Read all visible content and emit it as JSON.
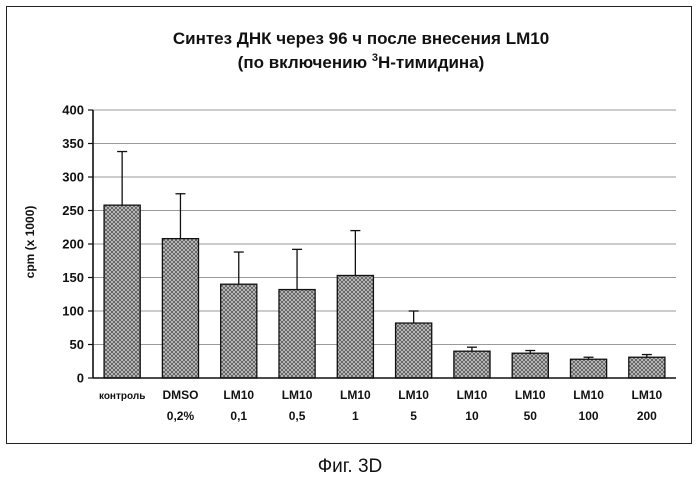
{
  "figure": {
    "caption": "Фиг. 3D"
  },
  "chart_data": {
    "type": "bar",
    "title_line1": "Синтез ДНК через 96 ч после внесения LM10",
    "title_line2_prefix": "(по включению ",
    "title_line2_sup": "3",
    "title_line2_suffix": "H-тимидина)",
    "xlabel": "",
    "ylabel": "cpm (x 1000)",
    "ylim": [
      0,
      400
    ],
    "yticks": [
      0,
      50,
      100,
      150,
      200,
      250,
      300,
      350,
      400
    ],
    "grid": true,
    "categories": [
      [
        "контроль"
      ],
      [
        "DMSO",
        "0,2%"
      ],
      [
        "LM10",
        "0,1"
      ],
      [
        "LM10",
        "0,5"
      ],
      [
        "LM10",
        "1"
      ],
      [
        "LM10",
        "5"
      ],
      [
        "LM10",
        "10"
      ],
      [
        "LM10",
        "50"
      ],
      [
        "LM10",
        "100"
      ],
      [
        "LM10",
        "200"
      ]
    ],
    "values": [
      258,
      208,
      140,
      132,
      153,
      82,
      40,
      37,
      28,
      31
    ],
    "errors": [
      80,
      67,
      48,
      60,
      67,
      18,
      6,
      4,
      3,
      4
    ],
    "bar_fill": "#8a8a8a"
  }
}
